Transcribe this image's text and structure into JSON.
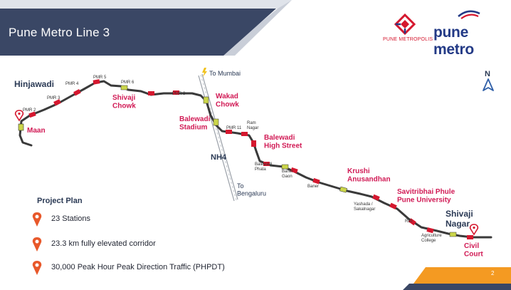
{
  "slide": {
    "title": "Pune Metro Line 3",
    "page_number": "2",
    "logos": {
      "pune_metropolis_text": "PUNE METROPOLIS",
      "pune_metro_text": "pune metro"
    }
  },
  "colors": {
    "title_bar": "#3a4765",
    "accent_orange": "#f49a22",
    "station_red": "#d5182f",
    "station_label_pink": "#d11a55",
    "stadium_yellow_green": "#cbd64a",
    "line_dark": "#3a3a3a",
    "pin_orange": "#e8582a"
  },
  "map": {
    "icons": [
      "north-arrow-icon",
      "location-pin-icon",
      "lightning-icon"
    ],
    "north_label": "N",
    "area_labels": {
      "hinjawadi": "Hinjawadi",
      "shivaji_nagar": "Shivaji\nNagar",
      "to_mumbai": "To Mumbai",
      "to_bengaluru": "To\nBengaluru",
      "nh4": "NH4"
    },
    "major_stations": {
      "maan": "Maan",
      "shivaji_chowk": "Shivaji\nChowk",
      "wakad_chowk": "Wakad\nChowk",
      "balewadi_stadium": "Balewadi\nStadium",
      "balewadi_high_street": "Balewadi\nHigh Street",
      "krushi_anusandhan": "Krushi\nAnusandhan",
      "savitribhai_phule": "Savitribhai Phule\nPune University",
      "civil_court": "Civil\nCourt"
    },
    "minor_stations": {
      "pmr2": "PMR 2",
      "pmr3": "PMR 3",
      "pmr4": "PMR 4",
      "pmr5": "PMR 5",
      "pmr6": "PMR 6",
      "pmr8": "PMR 8",
      "pmr11": "PMR 11",
      "ram_nagar": "Ram\nNagar",
      "balewadi_phata": "Balewadi\nPhata",
      "baner_gaon": "Baner\nGaon",
      "baner": "Baner",
      "yashada": "Yashada /\nSakalnagar",
      "rbi": "RBI",
      "agri_college": "Agriculture\nCollege"
    }
  },
  "project_plan": {
    "title": "Project Plan",
    "items": [
      {
        "text": "23 Stations"
      },
      {
        "text": "23.3 km fully elevated corridor"
      },
      {
        "text": "30,000 Peak Hour Peak Direction Traffic (PHPDT)"
      }
    ]
  }
}
